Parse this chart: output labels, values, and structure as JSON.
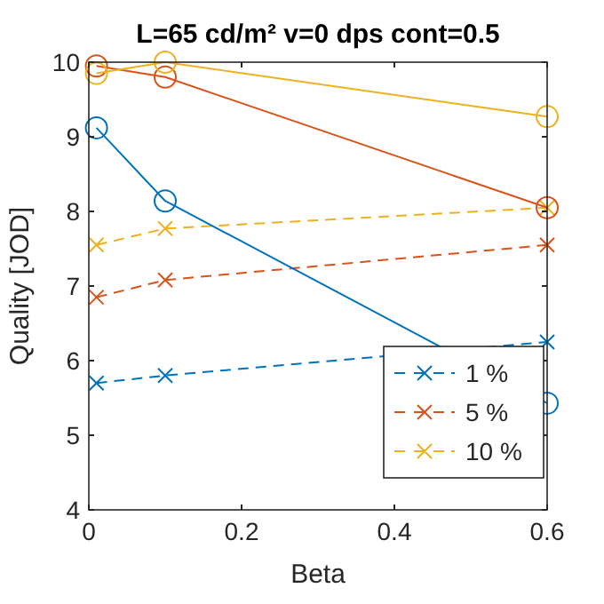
{
  "chart_data": {
    "type": "line",
    "title": "L=65 cd/m²  v=0 dps  cont=0.5",
    "xlabel": "Beta",
    "ylabel": "Quality [JOD]",
    "x": [
      0.01,
      0.1,
      0.6
    ],
    "series": [
      {
        "name": "1 %",
        "color": "#0072bd",
        "values": [
          5.7,
          5.8,
          6.25
        ],
        "marker": "cross",
        "line_style": "dashed"
      },
      {
        "name": "5 %",
        "color": "#d95319",
        "values": [
          6.85,
          7.08,
          7.55
        ],
        "marker": "cross",
        "line_style": "dashed"
      },
      {
        "name": "10 %",
        "color": "#edb120",
        "values": [
          7.55,
          7.77,
          8.05
        ],
        "marker": "cross",
        "line_style": "dashed"
      },
      {
        "color": "#0072bd",
        "values": [
          9.12,
          8.14,
          5.43
        ],
        "marker": "circle",
        "line_style": "solid"
      },
      {
        "color": "#d95319",
        "values": [
          9.95,
          9.8,
          8.05
        ],
        "marker": "circle",
        "line_style": "solid"
      },
      {
        "color": "#edb120",
        "values": [
          9.85,
          10.0,
          9.27
        ],
        "marker": "circle",
        "line_style": "solid"
      }
    ],
    "xlim": [
      0,
      0.6
    ],
    "xticks": [
      0,
      0.2,
      0.4,
      0.6
    ],
    "ylim": [
      4,
      10
    ],
    "yticks": [
      4,
      5,
      6,
      7,
      8,
      9,
      10
    ],
    "grid": false,
    "legend": "bottom right"
  }
}
